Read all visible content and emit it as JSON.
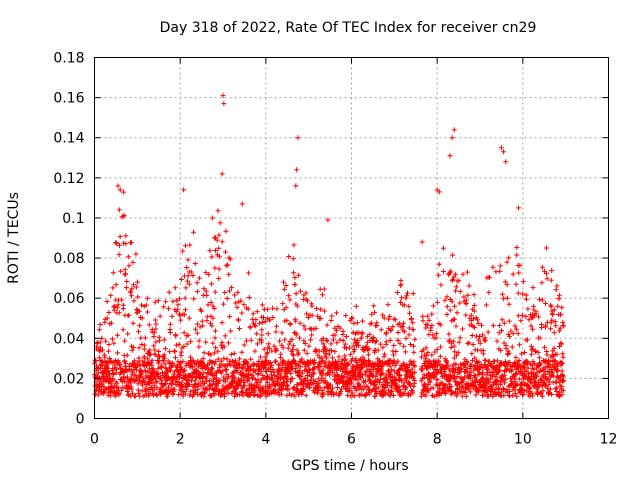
{
  "chart_data": {
    "type": "scatter",
    "title": "Day 318 of 2022, Rate Of TEC Index for receiver cn29",
    "xlabel": "GPS time / hours",
    "ylabel": "ROTI / TECUs",
    "xlim": [
      0,
      12
    ],
    "ylim": [
      0,
      0.18
    ],
    "x_ticks": [
      0,
      2,
      4,
      6,
      8,
      10,
      12
    ],
    "x_tick_labels": [
      "0",
      "2",
      "4",
      "6",
      "8",
      "10",
      "12"
    ],
    "y_ticks": [
      0,
      0.02,
      0.04,
      0.06,
      0.08,
      0.1,
      0.12,
      0.14,
      0.16,
      0.18
    ],
    "y_tick_labels": [
      "0",
      "0.02",
      "0.04",
      "0.06",
      "0.08",
      "0.1",
      "0.12",
      "0.14",
      "0.16",
      "0.18"
    ],
    "grid": true,
    "marker": "+",
    "series": [
      {
        "name": "ROTI",
        "color": "#ff0000",
        "x_range": [
          0,
          10.95
        ],
        "x_step": 0.01,
        "baseline": 0.02,
        "notable_points": [
          {
            "x": 3.0,
            "y": 0.161
          },
          {
            "x": 3.02,
            "y": 0.157
          },
          {
            "x": 2.98,
            "y": 0.122
          },
          {
            "x": 8.4,
            "y": 0.144
          },
          {
            "x": 8.35,
            "y": 0.14
          },
          {
            "x": 8.3,
            "y": 0.131
          },
          {
            "x": 9.5,
            "y": 0.135
          },
          {
            "x": 9.55,
            "y": 0.133
          },
          {
            "x": 9.6,
            "y": 0.128
          },
          {
            "x": 4.75,
            "y": 0.14
          },
          {
            "x": 4.72,
            "y": 0.124
          },
          {
            "x": 4.7,
            "y": 0.116
          },
          {
            "x": 0.55,
            "y": 0.116
          },
          {
            "x": 0.6,
            "y": 0.114
          },
          {
            "x": 0.58,
            "y": 0.104
          },
          {
            "x": 2.08,
            "y": 0.114
          },
          {
            "x": 3.45,
            "y": 0.107
          },
          {
            "x": 5.45,
            "y": 0.099
          },
          {
            "x": 8.0,
            "y": 0.114
          },
          {
            "x": 8.05,
            "y": 0.113
          },
          {
            "x": 9.9,
            "y": 0.105
          },
          {
            "x": 2.75,
            "y": 0.1
          },
          {
            "x": 7.65,
            "y": 0.088
          },
          {
            "x": 10.55,
            "y": 0.085
          }
        ]
      }
    ]
  }
}
